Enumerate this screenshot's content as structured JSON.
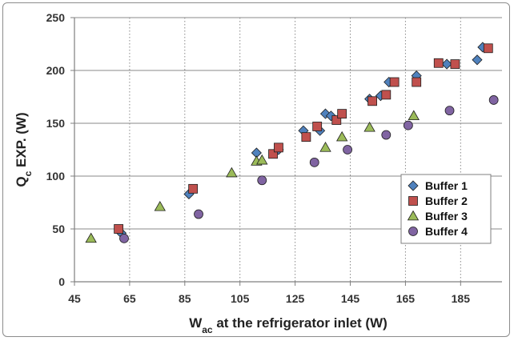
{
  "chart_data": {
    "type": "scatter",
    "title": "",
    "xlabel": {
      "main": "W",
      "sub": "ac",
      "rest": " at the refrigerator inlet (W)"
    },
    "ylabel": {
      "main": "Q",
      "sub": "c",
      "rest": " EXP. (W)"
    },
    "xlim": [
      45,
      200
    ],
    "ylim": [
      0,
      250
    ],
    "xticks": [
      45,
      65,
      85,
      105,
      125,
      145,
      165,
      185
    ],
    "yticks": [
      0,
      50,
      100,
      150,
      200,
      250
    ],
    "grid": {
      "x": "dotted",
      "y": "solid"
    },
    "legend_position": "bottom-right",
    "series": [
      {
        "name": "Buffer 1",
        "marker": "diamond",
        "color": "#4F81BD",
        "points": [
          [
            62,
            46
          ],
          [
            86.5,
            83
          ],
          [
            111,
            122
          ],
          [
            119,
            125
          ],
          [
            128,
            143
          ],
          [
            134,
            143
          ],
          [
            136,
            159
          ],
          [
            138,
            157
          ],
          [
            152,
            173
          ],
          [
            156,
            176
          ],
          [
            159,
            189
          ],
          [
            169,
            195
          ],
          [
            180,
            206
          ],
          [
            191,
            210
          ],
          [
            193,
            222
          ]
        ]
      },
      {
        "name": "Buffer 2",
        "marker": "square",
        "color": "#C0504D",
        "points": [
          [
            61,
            50
          ],
          [
            88,
            88
          ],
          [
            117,
            121
          ],
          [
            119,
            127
          ],
          [
            129,
            137
          ],
          [
            133,
            147
          ],
          [
            140,
            153
          ],
          [
            142,
            159
          ],
          [
            153,
            171
          ],
          [
            158,
            177
          ],
          [
            161,
            189
          ],
          [
            169,
            189
          ],
          [
            177,
            207
          ],
          [
            183,
            206
          ],
          [
            195,
            221
          ]
        ]
      },
      {
        "name": "Buffer 3",
        "marker": "triangle",
        "color": "#9BBB59",
        "points": [
          [
            51,
            41
          ],
          [
            76,
            71
          ],
          [
            102,
            103
          ],
          [
            111,
            114
          ],
          [
            113,
            115
          ],
          [
            136,
            127
          ],
          [
            142,
            137
          ],
          [
            152,
            146
          ],
          [
            168,
            157
          ]
        ]
      },
      {
        "name": "Buffer 4",
        "marker": "circle",
        "color": "#8064A2",
        "points": [
          [
            63,
            41
          ],
          [
            90,
            64
          ],
          [
            113,
            96
          ],
          [
            132,
            113
          ],
          [
            144,
            125
          ],
          [
            158,
            139
          ],
          [
            166,
            148
          ],
          [
            181,
            162
          ],
          [
            197,
            172
          ]
        ]
      }
    ]
  }
}
